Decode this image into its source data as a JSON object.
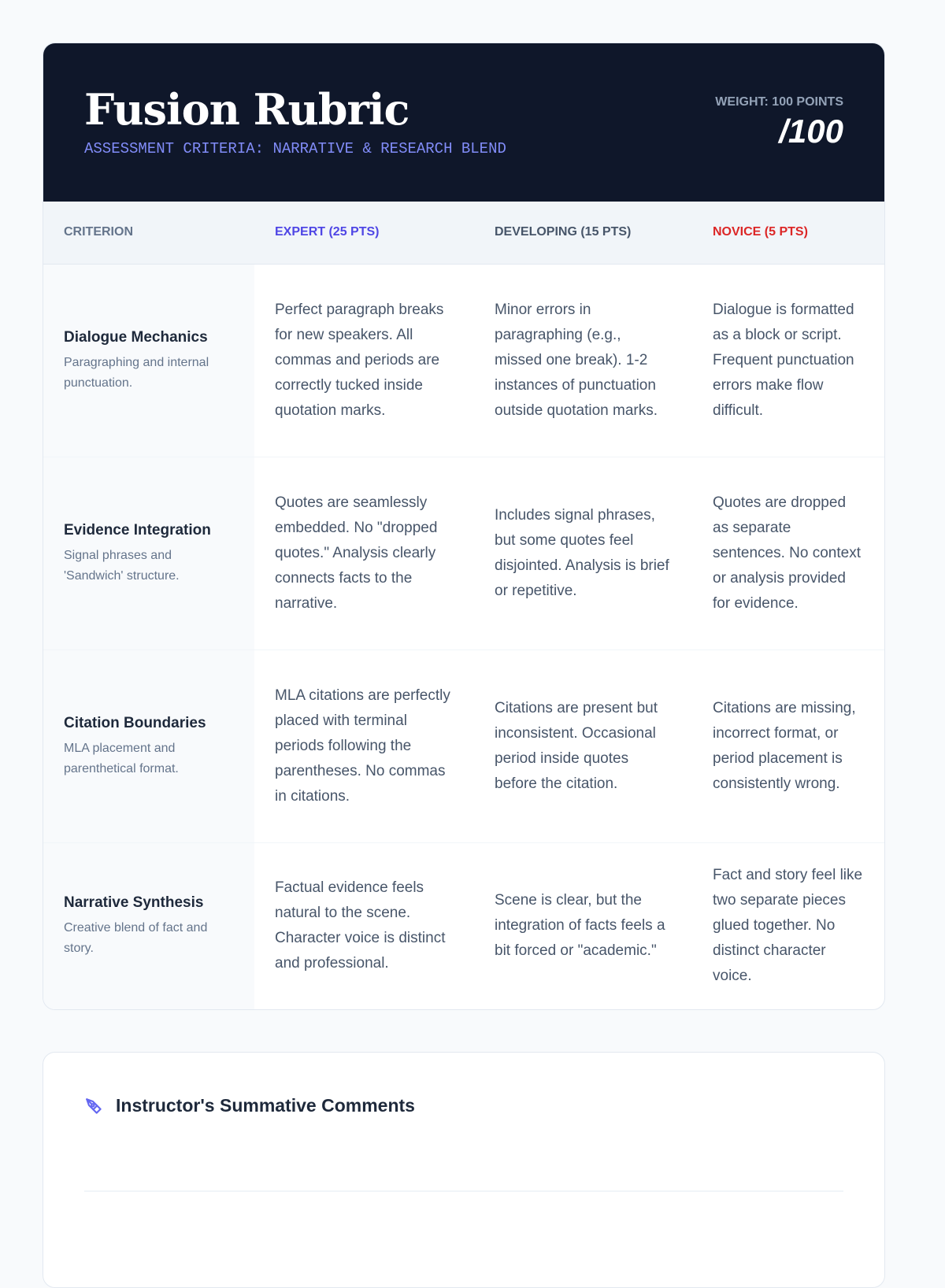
{
  "header": {
    "title": "Fusion Rubric",
    "subtitle": "ASSESSMENT CRITERIA: NARRATIVE & RESEARCH BLEND",
    "weight": "WEIGHT: 100 POINTS",
    "score": "/100"
  },
  "colors": {
    "header_bg": "#0f172a",
    "expert": "#4f46e5",
    "developing": "#475569",
    "novice": "#dc2626",
    "accent": "#818cf8"
  },
  "columns": [
    "CRITERION",
    "EXPERT (25 PTS)",
    "DEVELOPING (15 PTS)",
    "NOVICE (5 PTS)"
  ],
  "rows": [
    {
      "name": "Dialogue Mechanics",
      "desc": "Paragraphing and internal punctuation.",
      "expert": "Perfect paragraph breaks for new speakers. All commas and periods are correctly tucked inside quotation marks.",
      "developing": "Minor errors in paragraphing (e.g., missed one break). 1-2 instances of punctuation outside quotation marks.",
      "novice": "Dialogue is formatted as a block or script. Frequent punctuation errors make flow difficult."
    },
    {
      "name": "Evidence Integration",
      "desc": "Signal phrases and 'Sandwich' structure.",
      "expert": "Quotes are seamlessly embedded. No \"dropped quotes.\" Analysis clearly connects facts to the narrative.",
      "developing": "Includes signal phrases, but some quotes feel disjointed. Analysis is brief or repetitive.",
      "novice": "Quotes are dropped as separate sentences. No context or analysis provided for evidence."
    },
    {
      "name": "Citation Boundaries",
      "desc": "MLA placement and parenthetical format.",
      "expert": "MLA citations are perfectly placed with terminal periods following the parentheses. No commas in citations.",
      "developing": "Citations are present but inconsistent. Occasional period inside quotes before the citation.",
      "novice": "Citations are missing, incorrect format, or period placement is consistently wrong."
    },
    {
      "name": "Narrative Synthesis",
      "desc": "Creative blend of fact and story.",
      "expert": "Factual evidence feels natural to the scene. Character voice is distinct and professional.",
      "developing": "Scene is clear, but the integration of facts feels a bit forced or \"academic.\"",
      "novice": "Fact and story feel like two separate pieces glued together. No distinct character voice."
    }
  ],
  "comments": {
    "title": "Instructor's Summative Comments",
    "icon": "pen-nib-icon"
  }
}
